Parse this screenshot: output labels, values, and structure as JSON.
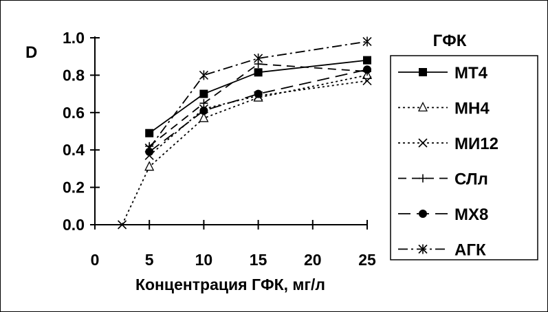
{
  "chart_data": {
    "type": "line",
    "xlabel": "Концентрация ГФК, мг/л",
    "ylabel": "D",
    "legend_title": "ГФК",
    "xlim": [
      0,
      25
    ],
    "ylim": [
      0,
      1.0
    ],
    "x_ticks": [
      "0",
      "5",
      "10",
      "15",
      "20",
      "25"
    ],
    "y_ticks": [
      "0.0",
      "0.2",
      "0.4",
      "0.6",
      "0.8",
      "1.0"
    ],
    "grid": false,
    "legend_position": "right",
    "series": [
      {
        "name": "МТ4",
        "marker": "filled-square",
        "line": "solid",
        "x": [
          5,
          10,
          15,
          25
        ],
        "y": [
          0.49,
          0.7,
          0.815,
          0.88
        ]
      },
      {
        "name": "МН4",
        "marker": "open-triangle",
        "line": "dotted",
        "x": [
          2.5,
          5,
          10,
          15,
          25
        ],
        "y": [
          0.0,
          0.31,
          0.57,
          0.68,
          0.8
        ]
      },
      {
        "name": "МИ12",
        "marker": "x",
        "line": "dotted",
        "x": [
          5,
          10,
          15,
          25
        ],
        "y": [
          0.37,
          0.62,
          0.69,
          0.77
        ]
      },
      {
        "name": "СЛл",
        "marker": "plus",
        "line": "dashed",
        "x": [
          5,
          10,
          15,
          25
        ],
        "y": [
          0.42,
          0.65,
          0.86,
          0.82
        ]
      },
      {
        "name": "МХ8",
        "marker": "filled-circle",
        "line": "long-dash",
        "x": [
          5,
          10,
          15,
          25
        ],
        "y": [
          0.39,
          0.61,
          0.7,
          0.83
        ]
      },
      {
        "name": "АГК",
        "marker": "asterisk",
        "line": "dash-dot",
        "x": [
          5,
          10,
          15,
          25
        ],
        "y": [
          0.41,
          0.8,
          0.89,
          0.98
        ]
      }
    ]
  }
}
